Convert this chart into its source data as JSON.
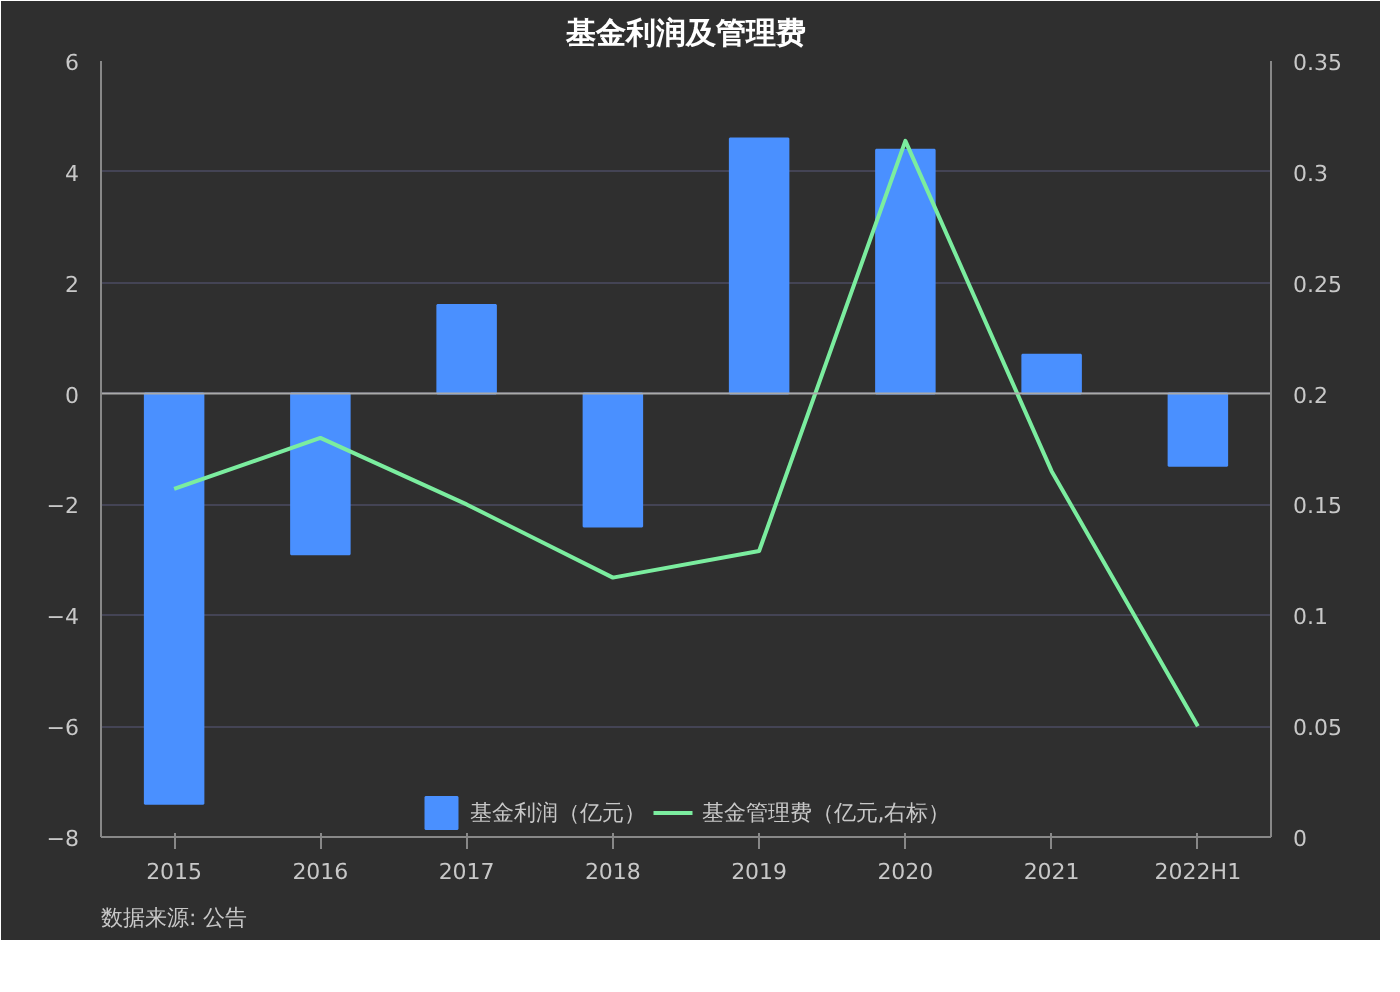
{
  "chart_data": {
    "type": "bar",
    "title": "基金利润及管理费",
    "categories": [
      "2015",
      "2016",
      "2017",
      "2018",
      "2019",
      "2020",
      "2021",
      "2022H1"
    ],
    "series": [
      {
        "name": "基金利润（亿元）",
        "color": "#4a90ff",
        "values": [
          -7.4,
          -2.9,
          1.6,
          -2.4,
          4.6,
          4.4,
          0.7,
          -1.3
        ]
      },
      {
        "name": "基金管理费（亿元,右标）",
        "type": "line",
        "axis": "y2",
        "color": "#7bed9f",
        "values": [
          0.157,
          0.18,
          0.15,
          0.117,
          0.129,
          0.314,
          0.165,
          0.05
        ]
      }
    ],
    "ylim": [
      -8,
      6
    ],
    "yticks": [
      -8,
      -6,
      -4,
      -2,
      0,
      2,
      4,
      6
    ],
    "y2lim": [
      0,
      0.35
    ],
    "y2ticks": [
      0,
      0.05,
      0.1,
      0.15,
      0.2,
      0.25,
      0.3,
      0.35
    ],
    "grid": "y",
    "legend": "bottom",
    "marker": "none",
    "line_style": "solid",
    "annotations": [
      "数据来源: 公告"
    ]
  }
}
